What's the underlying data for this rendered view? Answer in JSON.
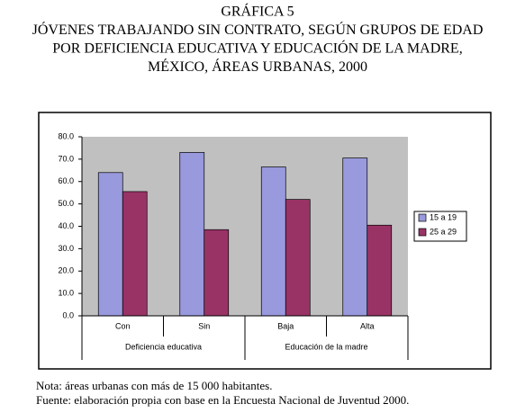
{
  "chart_data": {
    "type": "bar",
    "title": [
      "GRÁFICA 5",
      "JÓVENES TRABAJANDO SIN CONTRATO, SEGÚN GRUPOS DE EDAD",
      "POR DEFICIENCIA EDUCATIVA Y EDUCACIÓN DE LA MADRE,",
      "MÉXICO, ÁREAS URBANAS, 2000"
    ],
    "categories": [
      "Con",
      "Sin",
      "Baja",
      "Alta"
    ],
    "groups": [
      "Deficiencia educativa",
      "Educación de la madre"
    ],
    "series": [
      {
        "name": "15 a 19",
        "color": "#9999dd",
        "values": [
          64,
          73,
          66.5,
          70.5
        ]
      },
      {
        "name": "25 a 29",
        "color": "#993366",
        "values": [
          55.5,
          38.5,
          52,
          40.5
        ]
      }
    ],
    "ylim": [
      0,
      80
    ],
    "yticks": [
      {
        "value": 0,
        "label": "0.0"
      },
      {
        "value": 10,
        "label": "10.0"
      },
      {
        "value": 20,
        "label": "20.0"
      },
      {
        "value": 30,
        "label": "30.0"
      },
      {
        "value": 40,
        "label": "40.0"
      },
      {
        "value": 50,
        "label": "50.0"
      },
      {
        "value": 60,
        "label": "60.0"
      },
      {
        "value": 70,
        "label": "70.0"
      },
      {
        "value": 80,
        "label": "80.0"
      }
    ],
    "legend": "right",
    "notes": [
      "Nota: áreas urbanas con más de 15 000 habitantes.",
      "Fuente: elaboración propia con base en la Encuesta Nacional de Juventud 2000."
    ]
  }
}
